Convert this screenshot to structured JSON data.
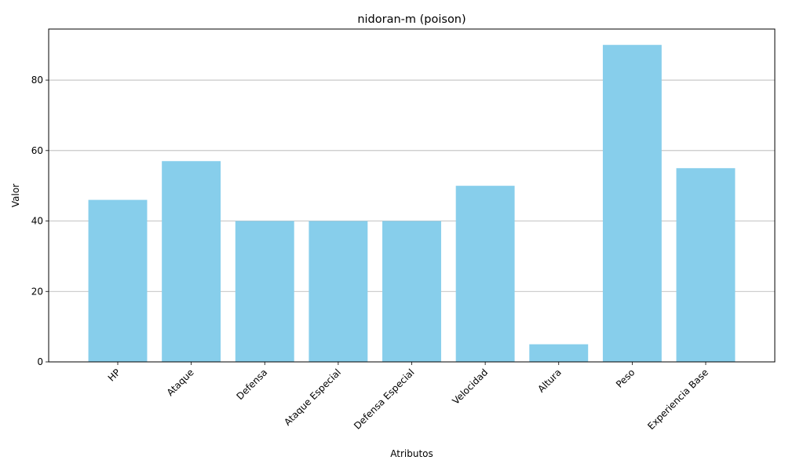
{
  "chart_data": {
    "type": "bar",
    "title": "nidoran-m (poison)",
    "xlabel": "Atributos",
    "ylabel": "Valor",
    "categories": [
      "HP",
      "Ataque",
      "Defensa",
      "Ataque Especial",
      "Defensa Especial",
      "Velocidad",
      "Altura",
      "Peso",
      "Experiencia Base"
    ],
    "values": [
      46,
      57,
      40,
      40,
      40,
      50,
      5,
      90,
      55
    ],
    "ylim": [
      0,
      94.5
    ],
    "yticks": [
      0,
      20,
      40,
      60,
      80
    ],
    "grid": "y",
    "legend": "none",
    "bar_color": "#87ceeb",
    "grid_color": "#b0b0b0"
  }
}
